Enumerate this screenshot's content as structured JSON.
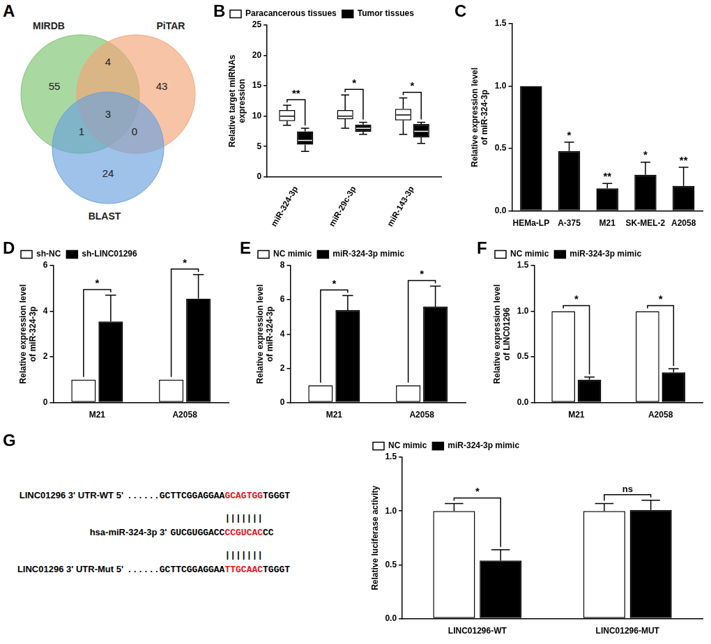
{
  "venn": {
    "panel": "A",
    "sets": [
      {
        "name": "MIRDB",
        "color": "#7cc36e"
      },
      {
        "name": "PiTAR",
        "color": "#f4a57a"
      },
      {
        "name": "BLAST",
        "color": "#6aa1dd"
      }
    ],
    "regions": [
      {
        "sets": [
          "MIRDB"
        ],
        "value": 55
      },
      {
        "sets": [
          "PiTAR"
        ],
        "value": 43
      },
      {
        "sets": [
          "BLAST"
        ],
        "value": 24
      },
      {
        "sets": [
          "MIRDB",
          "PiTAR"
        ],
        "value": 4
      },
      {
        "sets": [
          "MIRDB",
          "BLAST"
        ],
        "value": 1
      },
      {
        "sets": [
          "PiTAR",
          "BLAST"
        ],
        "value": 0
      },
      {
        "sets": [
          "MIRDB",
          "PiTAR",
          "BLAST"
        ],
        "value": 3
      }
    ]
  },
  "chart_data": [
    {
      "panel": "B",
      "type": "box",
      "categories": [
        "miR-324-3p",
        "miR-29c-3p",
        "miR-143-3p"
      ],
      "y_label": [
        "Relative target miRNAs",
        "expression"
      ],
      "ylim": [
        0,
        25
      ],
      "yticks": [
        0,
        5,
        10,
        15,
        20,
        25
      ],
      "grid": false,
      "legend": "top left",
      "series": [
        {
          "name": "Paracancerous tissues",
          "color": "#ffffff",
          "values": [
            {
              "min": 8.5,
              "q1": 9.2,
              "median": 10,
              "q3": 11,
              "max": 11.8
            },
            {
              "min": 8,
              "q1": 9.5,
              "median": 10,
              "q3": 11,
              "max": 13.5
            },
            {
              "min": 7,
              "q1": 9.3,
              "median": 10.2,
              "q3": 11.2,
              "max": 13
            }
          ]
        },
        {
          "name": "Tumor tissues",
          "color": "#000000",
          "values": [
            {
              "min": 4.2,
              "q1": 5.3,
              "median": 6,
              "q3": 7.5,
              "max": 8
            },
            {
              "min": 7,
              "q1": 7.4,
              "median": 8,
              "q3": 8.6,
              "max": 9
            },
            {
              "min": 5.5,
              "q1": 6.5,
              "median": 7.5,
              "q3": 8.7,
              "max": 9
            }
          ]
        }
      ],
      "significance": [
        "**",
        "*",
        "*"
      ]
    },
    {
      "panel": "C",
      "type": "bar",
      "categories": [
        "HEMa-LP",
        "A-375",
        "M21",
        "SK-MEL-2",
        "A2058"
      ],
      "values": [
        1.0,
        0.48,
        0.18,
        0.29,
        0.2
      ],
      "errors": [
        null,
        0.07,
        0.04,
        0.1,
        0.15
      ],
      "color": "#000000",
      "y_label": [
        "Relative expression level",
        "of miR-324-3p"
      ],
      "ylim": [
        0,
        1.5
      ],
      "yticks": [
        {
          "value": 0,
          "label": "0.0"
        },
        0.5,
        {
          "value": 1,
          "label": "1.0"
        },
        1.5
      ],
      "grid": false,
      "significance": [
        null,
        "*",
        "**",
        "*",
        "**"
      ]
    },
    {
      "panel": "D",
      "type": "bar",
      "categories": [
        "M21",
        "A2058"
      ],
      "y_label": [
        "Relative expression level",
        "of miR-324-3p"
      ],
      "ylim": [
        0,
        6
      ],
      "yticks": [
        0,
        2,
        4,
        6
      ],
      "grid": false,
      "legend": "top left",
      "series": [
        {
          "name": "sh-NC",
          "color": "#ffffff",
          "values": [
            1,
            1
          ],
          "errors": [
            null,
            null
          ]
        },
        {
          "name": "sh-LINC01296",
          "color": "#000000",
          "values": [
            3.55,
            4.55
          ],
          "errors": [
            1.15,
            1.05
          ]
        }
      ],
      "significance": [
        "*",
        "*"
      ]
    },
    {
      "panel": "E",
      "type": "bar",
      "categories": [
        "M21",
        "A2058"
      ],
      "y_label": [
        "Relative expression level",
        "of miR-324-3p"
      ],
      "ylim": [
        0,
        8
      ],
      "yticks": [
        0,
        2,
        4,
        6,
        8
      ],
      "grid": false,
      "legend": "top left",
      "series": [
        {
          "name": "NC mimic",
          "color": "#ffffff",
          "values": [
            1,
            1
          ],
          "errors": [
            null,
            null
          ]
        },
        {
          "name": "miR-324-3p mimic",
          "color": "#000000",
          "values": [
            5.4,
            5.6
          ],
          "errors": [
            0.85,
            1.2
          ]
        }
      ],
      "significance": [
        "*",
        "*"
      ]
    },
    {
      "panel": "F",
      "type": "bar",
      "categories": [
        "M21",
        "A2058"
      ],
      "y_label": [
        "Relative expression level",
        "of LINC01296"
      ],
      "ylim": [
        0,
        1.5
      ],
      "yticks": [
        {
          "value": 0,
          "label": "0.0"
        },
        0.5,
        {
          "value": 1,
          "label": "1.0"
        },
        1.5
      ],
      "grid": false,
      "legend": "top left",
      "series": [
        {
          "name": "NC mimic",
          "color": "#ffffff",
          "values": [
            1,
            1
          ],
          "errors": [
            null,
            null
          ]
        },
        {
          "name": "miR-324-3p mimic",
          "color": "#000000",
          "values": [
            0.25,
            0.33
          ],
          "errors": [
            0.03,
            0.04
          ]
        }
      ],
      "significance": [
        "*",
        "*"
      ]
    },
    {
      "panel": "G",
      "type": "bar",
      "categories": [
        "LINC01296-WT",
        "LINC01296-MUT"
      ],
      "y_label": [
        "Relative luciferase activity"
      ],
      "ylim": [
        0,
        1.5
      ],
      "yticks": [
        {
          "value": 0,
          "label": "0.0"
        },
        0.5,
        {
          "value": 1,
          "label": "1.0"
        },
        1.5
      ],
      "grid": false,
      "legend": "top left",
      "series": [
        {
          "name": "NC mimic",
          "color": "#ffffff",
          "values": [
            1.0,
            1.0
          ],
          "errors": [
            0.07,
            0.07
          ]
        },
        {
          "name": "miR-324-3p mimic",
          "color": "#000000",
          "values": [
            0.54,
            1.01
          ],
          "errors": [
            0.1,
            0.09
          ]
        }
      ],
      "significance": [
        "*",
        "ns"
      ]
    }
  ],
  "sequence": {
    "rows": [
      {
        "label": "LINC01296 3' UTR-WT 5'",
        "segments": [
          {
            "text": "......GCTTCGGAGGAA"
          },
          {
            "text": "GCAGTGG",
            "highlight": true
          },
          {
            "text": "TGGGT"
          }
        ]
      },
      {
        "label": "hsa-miR-324-3p 3'",
        "segments": [
          {
            "text": "GUCGUGGACC"
          },
          {
            "text": "CCGUCAC",
            "highlight": true
          },
          {
            "text": "CC"
          }
        ]
      },
      {
        "label": "LINC01296 3' UTR-Mut 5'",
        "segments": [
          {
            "text": "......GCTTCGGAGGAA"
          },
          {
            "text": "TTGCAAC",
            "highlight": true
          },
          {
            "text": "TGGGT"
          }
        ]
      }
    ],
    "pairs": "|||||||",
    "highlight_color": "#e8141c"
  }
}
